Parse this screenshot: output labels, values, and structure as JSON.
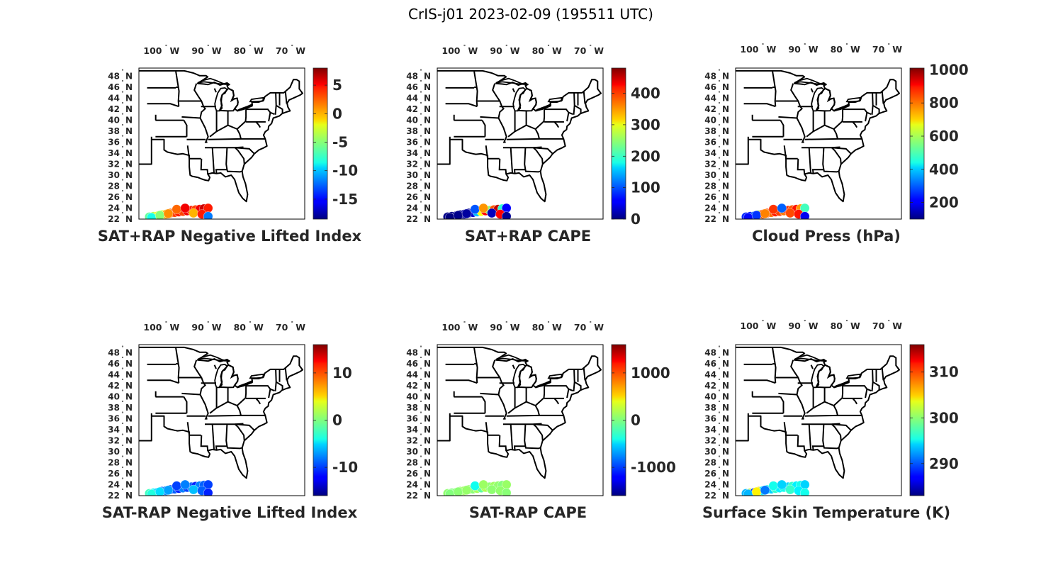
{
  "figure_title": "CrIS-j01 2023-02-09 (195511 UTC)",
  "map_extent": {
    "lon_min": -106,
    "lon_max": -66.5,
    "lat_min": 22,
    "lat_max": 49.5
  },
  "lon_ticks": [
    {
      "value": -100,
      "label": "100",
      "hemi": "W"
    },
    {
      "value": -90,
      "label": "90",
      "hemi": "W"
    },
    {
      "value": -80,
      "label": "80",
      "hemi": "W"
    },
    {
      "value": -70,
      "label": "70",
      "hemi": "W"
    }
  ],
  "lat_ticks": [
    {
      "value": 22,
      "label": "22",
      "hemi": "N"
    },
    {
      "value": 24,
      "label": "24",
      "hemi": "N"
    },
    {
      "value": 26,
      "label": "26",
      "hemi": "N"
    },
    {
      "value": 28,
      "label": "28",
      "hemi": "N"
    },
    {
      "value": 30,
      "label": "30",
      "hemi": "N"
    },
    {
      "value": 32,
      "label": "32",
      "hemi": "N"
    },
    {
      "value": 34,
      "label": "34",
      "hemi": "N"
    },
    {
      "value": 36,
      "label": "36",
      "hemi": "N"
    },
    {
      "value": 38,
      "label": "38",
      "hemi": "N"
    },
    {
      "value": 40,
      "label": "40",
      "hemi": "N"
    },
    {
      "value": 42,
      "label": "42",
      "hemi": "N"
    },
    {
      "value": 44,
      "label": "44",
      "hemi": "N"
    },
    {
      "value": 46,
      "label": "46",
      "hemi": "N"
    },
    {
      "value": 48,
      "label": "48",
      "hemi": "N"
    }
  ],
  "colormap": "jet",
  "panels": [
    {
      "title": "SAT+RAP Negative Lifted Index",
      "clim": [
        -18.5,
        8
      ],
      "colorbar_ticks": [
        {
          "value": 5,
          "label": "5"
        },
        {
          "value": 0,
          "label": "0"
        },
        {
          "value": -5,
          "label": "-5"
        },
        {
          "value": -10,
          "label": "-10"
        },
        {
          "value": -15,
          "label": "-15"
        }
      ],
      "chart_data": {
        "type": "scatter",
        "x_lon": [
          -103.5,
          -102.5,
          -101.5,
          -100.5,
          -99.5,
          -98.5,
          -97.5,
          -96.5,
          -95.5,
          -94.5,
          -93.5,
          -92.5,
          -91.5,
          -90.5,
          -89.5,
          -103,
          -101,
          -99,
          -97,
          -95,
          -93,
          -91,
          -89.5
        ],
        "y_lat": [
          22.4,
          22.5,
          22.6,
          22.8,
          22.9,
          23.1,
          23.2,
          23.3,
          23.4,
          23.5,
          23.6,
          23.7,
          23.8,
          23.9,
          24.0,
          22.3,
          22.7,
          23.0,
          23.8,
          24.0,
          23.1,
          22.9,
          22.5
        ],
        "values": [
          -6,
          -4,
          -2,
          -3,
          0,
          2,
          3,
          4,
          3,
          5,
          4,
          3,
          5,
          6,
          4,
          -8,
          -5,
          1,
          2,
          5,
          0,
          4,
          -12
        ]
      }
    },
    {
      "title": "SAT+RAP CAPE",
      "clim": [
        0,
        480
      ],
      "colorbar_ticks": [
        {
          "value": 400,
          "label": "400"
        },
        {
          "value": 300,
          "label": "300"
        },
        {
          "value": 200,
          "label": "200"
        },
        {
          "value": 100,
          "label": "100"
        },
        {
          "value": 0,
          "label": "0"
        }
      ],
      "chart_data": {
        "type": "scatter",
        "x_lon": [
          -103.5,
          -102.5,
          -101.5,
          -100.5,
          -99.5,
          -98.5,
          -97.5,
          -96.5,
          -95.5,
          -94.5,
          -93.5,
          -92.5,
          -91.5,
          -90.5,
          -89.5,
          -103,
          -101,
          -99,
          -97,
          -95,
          -93,
          -91,
          -89.5
        ],
        "y_lat": [
          22.4,
          22.5,
          22.6,
          22.8,
          22.9,
          23.1,
          23.2,
          23.3,
          23.4,
          23.5,
          23.6,
          23.7,
          23.8,
          23.9,
          24.0,
          22.3,
          22.7,
          23.0,
          23.8,
          24.0,
          23.1,
          22.9,
          22.5
        ],
        "values": [
          5,
          3,
          10,
          2,
          20,
          8,
          40,
          150,
          300,
          420,
          250,
          380,
          450,
          200,
          60,
          0,
          5,
          15,
          100,
          350,
          30,
          420,
          10
        ]
      }
    },
    {
      "title": "Cloud Press (hPa)",
      "clim": [
        100,
        1010
      ],
      "colorbar_ticks": [
        {
          "value": 1000,
          "label": "1000"
        },
        {
          "value": 800,
          "label": "800"
        },
        {
          "value": 600,
          "label": "600"
        },
        {
          "value": 400,
          "label": "400"
        },
        {
          "value": 200,
          "label": "200"
        }
      ],
      "chart_data": {
        "type": "scatter",
        "x_lon": [
          -103.5,
          -102.5,
          -101.5,
          -100.5,
          -99.5,
          -98.5,
          -97.5,
          -96.5,
          -95.5,
          -94.5,
          -93.5,
          -92.5,
          -91.5,
          -90.5,
          -89.5,
          -103,
          -101,
          -99,
          -97,
          -95,
          -93,
          -91,
          -89.5
        ],
        "y_lat": [
          22.4,
          22.5,
          22.6,
          22.8,
          22.9,
          23.1,
          23.2,
          23.3,
          23.4,
          23.5,
          23.6,
          23.7,
          23.8,
          23.9,
          24.0,
          22.3,
          22.7,
          23.0,
          23.8,
          24.0,
          23.1,
          22.9,
          22.5
        ],
        "values": [
          250,
          230,
          300,
          600,
          820,
          850,
          800,
          870,
          840,
          790,
          860,
          820,
          880,
          760,
          500,
          220,
          260,
          780,
          850,
          300,
          830,
          880,
          200
        ]
      }
    },
    {
      "title": "SAT-RAP Negative Lifted Index",
      "clim": [
        -16,
        16
      ],
      "colorbar_ticks": [
        {
          "value": 10,
          "label": "10"
        },
        {
          "value": 0,
          "label": "0"
        },
        {
          "value": -10,
          "label": "-10"
        }
      ],
      "chart_data": {
        "type": "scatter",
        "x_lon": [
          -103.5,
          -102.5,
          -101.5,
          -100.5,
          -99.5,
          -98.5,
          -97.5,
          -96.5,
          -95.5,
          -94.5,
          -93.5,
          -92.5,
          -91.5,
          -90.5,
          -89.5,
          -103,
          -101,
          -99,
          -97,
          -95,
          -93,
          -91,
          -89.5
        ],
        "y_lat": [
          22.4,
          22.5,
          22.6,
          22.8,
          22.9,
          23.1,
          23.2,
          23.3,
          23.4,
          23.5,
          23.6,
          23.7,
          23.8,
          23.9,
          24.0,
          22.3,
          22.7,
          23.0,
          23.8,
          24.0,
          23.1,
          22.9,
          22.5
        ],
        "values": [
          -2,
          -4,
          -6,
          -9,
          -8,
          -10,
          -9,
          -11,
          -8,
          -10,
          -9,
          -11,
          -8,
          -9,
          -10,
          -3,
          -5,
          -7,
          -10,
          -8,
          -6,
          -9,
          -11
        ]
      }
    },
    {
      "title": "SAT-RAP CAPE",
      "clim": [
        -1600,
        1600
      ],
      "colorbar_ticks": [
        {
          "value": 1000,
          "label": "1000"
        },
        {
          "value": 0,
          "label": "0"
        },
        {
          "value": -1000,
          "label": "-1000"
        }
      ],
      "chart_data": {
        "type": "scatter",
        "x_lon": [
          -103.5,
          -102.5,
          -101.5,
          -100.5,
          -99.5,
          -98.5,
          -97.5,
          -96.5,
          -95.5,
          -94.5,
          -93.5,
          -92.5,
          -91.5,
          -90.5,
          -89.5,
          -103,
          -101,
          -99,
          -97,
          -95,
          -93,
          -91,
          -89.5
        ],
        "y_lat": [
          22.4,
          22.5,
          22.6,
          22.8,
          22.9,
          23.1,
          23.2,
          23.3,
          23.4,
          23.5,
          23.6,
          23.7,
          23.8,
          23.9,
          24.0,
          22.3,
          22.7,
          23.0,
          23.8,
          24.0,
          23.1,
          22.9,
          22.5
        ],
        "values": [
          50,
          0,
          20,
          80,
          100,
          60,
          30,
          120,
          -100,
          150,
          40,
          100,
          60,
          20,
          80,
          10,
          40,
          70,
          -350,
          90,
          50,
          60,
          30
        ]
      }
    },
    {
      "title": "Surface Skin Temperature (K)",
      "clim": [
        283,
        316
      ],
      "colorbar_ticks": [
        {
          "value": 310,
          "label": "310"
        },
        {
          "value": 300,
          "label": "300"
        },
        {
          "value": 290,
          "label": "290"
        }
      ],
      "chart_data": {
        "type": "scatter",
        "x_lon": [
          -103.5,
          -102.5,
          -101.5,
          -100.5,
          -99.5,
          -98.5,
          -97.5,
          -96.5,
          -95.5,
          -94.5,
          -93.5,
          -92.5,
          -91.5,
          -90.5,
          -89.5,
          -103,
          -101,
          -99,
          -97,
          -95,
          -93,
          -91,
          -89.5
        ],
        "y_lat": [
          22.4,
          22.5,
          22.6,
          22.8,
          22.9,
          23.1,
          23.2,
          23.3,
          23.4,
          23.5,
          23.6,
          23.7,
          23.8,
          23.9,
          24.0,
          22.3,
          22.7,
          23.0,
          23.8,
          24.0,
          23.1,
          22.9,
          22.5
        ],
        "values": [
          293,
          302,
          288,
          305,
          295,
          296,
          294,
          297,
          295,
          296,
          294,
          297,
          295,
          296,
          294,
          293,
          304,
          291,
          296,
          294,
          297,
          295,
          296
        ]
      }
    }
  ]
}
